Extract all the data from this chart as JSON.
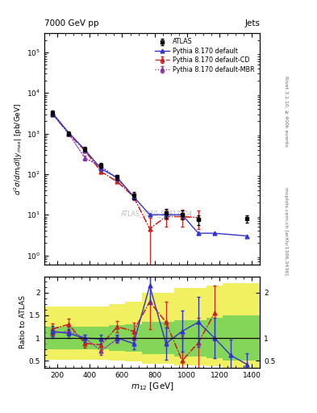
{
  "title_left": "7000 GeV pp",
  "title_right": "Jets",
  "ylabel_main": "$d^2\\sigma/dm_tdl|y_{max}|$ [pb/GeV]",
  "ylabel_ratio": "Ratio to ATLAS",
  "xlabel": "$m_{12}$ [GeV]",
  "right_label_top": "Rivet 3.1.10, ≥ 400k events",
  "right_label_bottom": "mcplots.cern.ch [arXiv:1306.3436]",
  "watermark": "ATLAS_2010_S8817804",
  "x_centers": [
    170,
    270,
    370,
    470,
    570,
    670,
    770,
    870,
    970,
    1070,
    1170,
    1270,
    1370
  ],
  "x_edges": [
    120,
    220,
    320,
    420,
    520,
    620,
    720,
    820,
    920,
    1020,
    1120,
    1220,
    1320,
    1450
  ],
  "atlas_y": [
    3200,
    1000,
    420,
    165,
    85,
    30,
    null,
    11,
    10,
    7.5,
    null,
    null,
    8
  ],
  "atlas_yerr_lo": [
    500,
    120,
    50,
    20,
    12,
    6,
    null,
    3,
    2.5,
    2,
    null,
    null,
    1.5
  ],
  "atlas_yerr_hi": [
    500,
    120,
    50,
    20,
    12,
    6,
    null,
    3,
    2.5,
    2,
    null,
    null,
    1.5
  ],
  "py_default_y": [
    3200,
    1050,
    400,
    135,
    82,
    28,
    10,
    10,
    10,
    3.5,
    3.5,
    null,
    3.0
  ],
  "py_default_yerr": [
    0,
    0,
    0,
    0,
    0,
    0,
    0,
    0,
    0,
    0,
    0,
    null,
    0
  ],
  "py_cd_y": [
    3100,
    1000,
    380,
    115,
    65,
    28,
    4.5,
    9,
    9,
    8.5,
    null,
    null,
    null
  ],
  "py_cd_yerr_lo": [
    0,
    0,
    0,
    0,
    0,
    0,
    4,
    4,
    4,
    4,
    null,
    null,
    null
  ],
  "py_cd_yerr_hi": [
    0,
    0,
    0,
    0,
    0,
    0,
    4,
    4,
    4,
    4,
    null,
    null,
    null
  ],
  "py_mbr_y": [
    3000,
    1000,
    250,
    155,
    78,
    28,
    null,
    null,
    null,
    null,
    null,
    null,
    null
  ],
  "py_mbr_yerr": [
    0,
    0,
    30,
    20,
    8,
    5,
    null,
    null,
    null,
    null,
    null,
    null,
    null
  ],
  "ratio_default_y": [
    1.15,
    1.1,
    1.0,
    0.98,
    1.0,
    0.88,
    2.15,
    0.88,
    1.15,
    1.35,
    1.0,
    0.62,
    0.42
  ],
  "ratio_default_yerr": [
    0.12,
    0.1,
    0.08,
    0.1,
    0.08,
    0.12,
    0.4,
    0.35,
    0.45,
    0.55,
    0.45,
    0.35,
    0.25
  ],
  "ratio_cd_y": [
    1.2,
    1.3,
    0.88,
    0.85,
    1.25,
    1.15,
    1.8,
    1.35,
    0.5,
    0.9,
    1.55,
    null,
    null
  ],
  "ratio_cd_yerr_lo": [
    0.12,
    0.12,
    0.1,
    0.12,
    0.12,
    0.18,
    0.6,
    0.45,
    0.55,
    0.55,
    0.6,
    null,
    null
  ],
  "ratio_cd_yerr_hi": [
    0.12,
    0.12,
    0.1,
    0.12,
    0.12,
    0.18,
    0.6,
    0.45,
    0.55,
    0.55,
    0.6,
    null,
    null
  ],
  "ratio_mbr_y": [
    1.1,
    1.15,
    1.0,
    0.72,
    0.98,
    1.0,
    null,
    null,
    null,
    null,
    null,
    null,
    null
  ],
  "ratio_mbr_yerr": [
    0.1,
    0.1,
    0.08,
    0.1,
    0.08,
    0.12,
    null,
    null,
    null,
    null,
    null,
    null,
    null
  ],
  "green_lo": [
    0.75,
    0.75,
    0.75,
    0.75,
    0.72,
    0.7,
    0.65,
    0.65,
    0.6,
    0.6,
    0.55,
    0.5,
    0.5
  ],
  "green_hi": [
    1.25,
    1.25,
    1.25,
    1.25,
    1.28,
    1.3,
    1.35,
    1.35,
    1.4,
    1.4,
    1.45,
    1.5,
    1.5
  ],
  "yellow_lo": [
    0.52,
    0.52,
    0.52,
    0.52,
    0.5,
    0.48,
    0.44,
    0.44,
    0.4,
    0.4,
    0.38,
    0.35,
    0.35
  ],
  "yellow_hi": [
    1.7,
    1.7,
    1.7,
    1.7,
    1.75,
    1.8,
    2.0,
    2.0,
    2.1,
    2.1,
    2.15,
    2.2,
    2.2
  ],
  "color_atlas": "#000000",
  "color_default": "#3333cc",
  "color_cd": "#cc2222",
  "color_mbr": "#8833aa",
  "color_green": "#55cc55",
  "color_yellow": "#eeee44",
  "bg_color": "#ffffff"
}
